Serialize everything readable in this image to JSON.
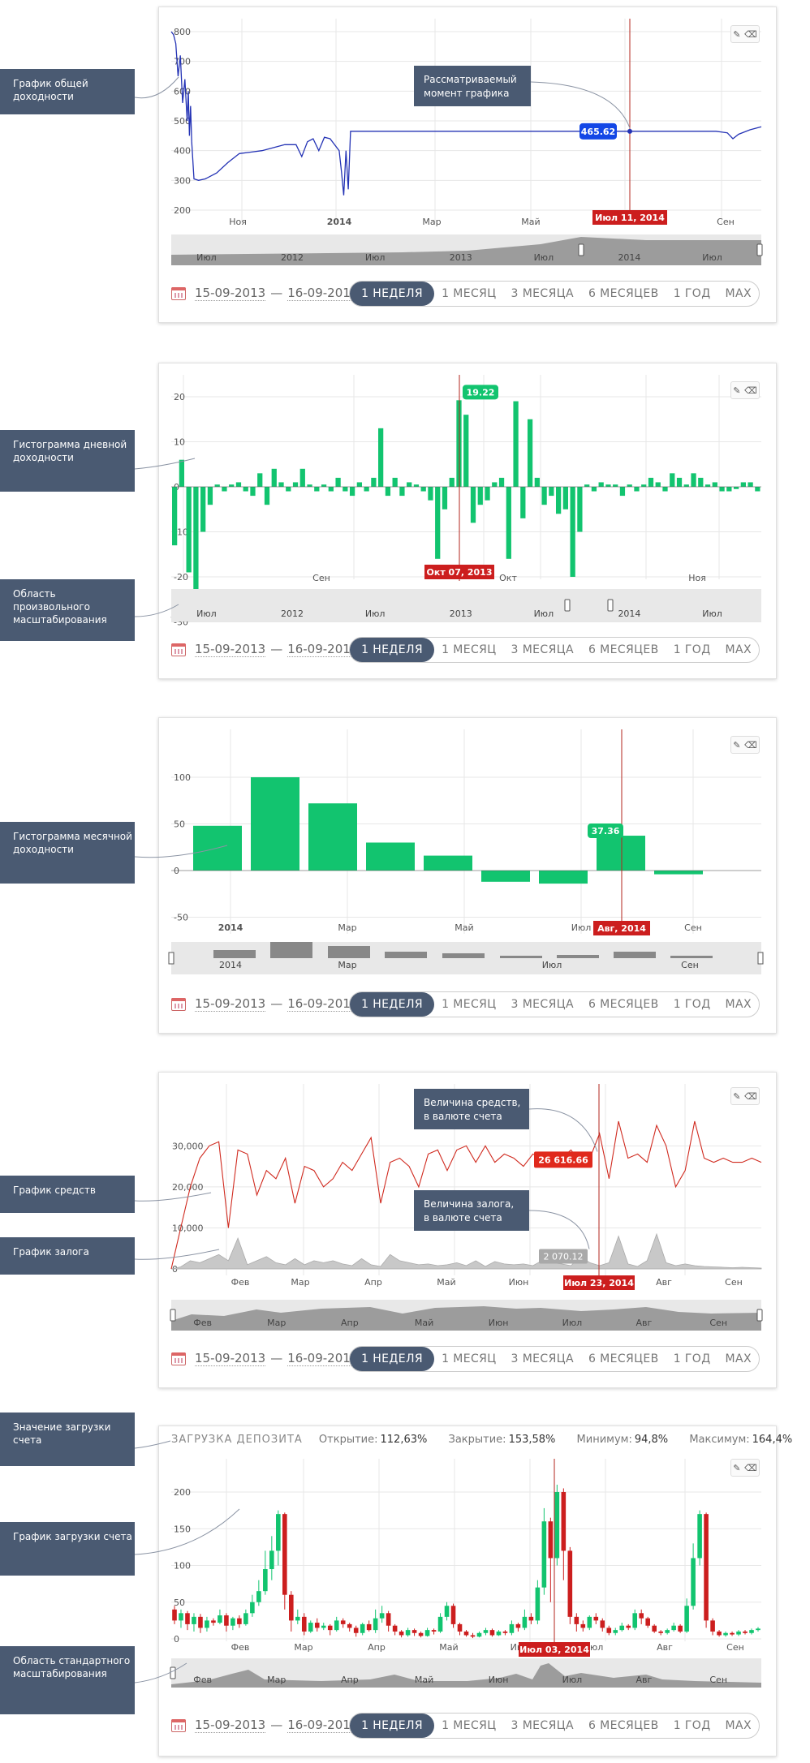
{
  "callouts": {
    "total_return_graph": "График общей доходности",
    "daily_histogram": "Гистограмма дневной доходности",
    "custom_zoom": "Область произвольного масштабирования",
    "monthly_histogram": "Гистограмма месячной доходности",
    "funds_graph": "График средств",
    "collateral_graph": "График залога",
    "deposit_load_value": "Значение загрузки счета",
    "deposit_load_graph": "График загрузки счета",
    "standard_zoom": "Область стандартного масштабирования"
  },
  "annotations": {
    "considered_moment": "Рассматриваемый момент графика",
    "funds_value": "Величина средств, в валюте счета",
    "collateral_value": "Величина залога, в валюте счета"
  },
  "footer": {
    "date_from": "15-09-2013",
    "dash": "—",
    "date_to": "16-09-2014",
    "periods": [
      "1 НЕДЕЛЯ",
      "1 МЕСЯЦ",
      "3 МЕСЯЦА",
      "6 МЕСЯЦЕВ",
      "1 ГОД",
      "MAX"
    ]
  },
  "tools": {
    "pencil": "✎",
    "eraser": "⌫"
  },
  "navigator": {
    "long_labels": [
      "Июл",
      "2012",
      "Июл",
      "2013",
      "Июл",
      "2014",
      "Июл"
    ],
    "monthly_labels": [
      "2014",
      "Мар",
      "Июл",
      "Сен"
    ],
    "funds_labels": [
      "Фев",
      "Мар",
      "Апр",
      "Май",
      "Июн",
      "Июл",
      "Авг",
      "Сен"
    ]
  },
  "deposit_header": {
    "title": "ЗАГРУЗКА ДЕПОЗИТА",
    "open_label": "Открытие:",
    "open_value": "112,63%",
    "close_label": "Закрытие:",
    "close_value": "153,58%",
    "min_label": "Минимум:",
    "min_value": "94,8%",
    "max_label": "Максимум:",
    "max_value": "164,4%"
  },
  "chart_data": [
    {
      "type": "line",
      "y_ticks": [
        800,
        700,
        600,
        500,
        400,
        300,
        200
      ],
      "ylim": [
        200,
        800
      ],
      "x_ticks": [
        "Ноя",
        "2014",
        "Мар",
        "Май",
        "Сен"
      ],
      "crosshair_label": "Июл 11, 2014",
      "crosshair_value": "465.62",
      "series": [
        {
          "x": [
            0,
            2,
            4,
            6,
            8,
            10,
            12,
            14,
            15,
            16,
            17,
            18,
            20,
            24,
            30,
            40,
            50,
            60,
            70,
            80,
            90,
            100,
            110,
            115,
            120,
            125,
            130,
            135,
            140,
            148,
            150,
            152,
            154,
            156,
            158,
            160,
            162,
            165,
            200,
            300,
            400,
            480,
            490,
            495,
            500,
            510,
            520
          ],
          "y": [
            800,
            790,
            760,
            650,
            720,
            560,
            640,
            500,
            600,
            450,
            550,
            430,
            305,
            300,
            305,
            325,
            360,
            390,
            395,
            400,
            410,
            420,
            420,
            380,
            430,
            440,
            400,
            445,
            440,
            400,
            330,
            250,
            400,
            270,
            465,
            465,
            465,
            465,
            465,
            465,
            465,
            465,
            460,
            440,
            455,
            470,
            480
          ]
        }
      ]
    },
    {
      "type": "bar",
      "y_ticks": [
        20,
        10,
        0,
        -10,
        -20,
        -30
      ],
      "ylim": [
        -30,
        25
      ],
      "x_ticks": [
        "Сен",
        "Окт",
        "Ноя"
      ],
      "crosshair_label": "Окт 07, 2013",
      "crosshair_value": "19.22",
      "values": [
        -13,
        6,
        -19,
        -23,
        -10,
        -4,
        0.5,
        -1,
        0.5,
        1,
        -1,
        -2,
        3,
        -4,
        4,
        1,
        -1,
        1,
        4,
        0.5,
        -1,
        0.5,
        -1,
        2,
        -1,
        -2,
        1,
        -1,
        2,
        13,
        -2,
        2,
        -2,
        1,
        0.5,
        -1,
        -3,
        -16,
        -5,
        2,
        19.22,
        16,
        -8,
        -4,
        -3,
        1,
        2,
        -16,
        19,
        -7,
        15,
        2,
        -4,
        -2,
        -6,
        -5,
        -20,
        -10,
        0.5,
        -1,
        1,
        0.5,
        0.5,
        -2,
        0.5,
        -1,
        0.5,
        2,
        1,
        -1,
        3,
        2,
        0.5,
        3,
        2,
        0.5,
        1,
        -1,
        -1,
        -0.5,
        1,
        1,
        -1
      ]
    },
    {
      "type": "bar",
      "y_ticks": [
        100,
        50,
        0,
        -50
      ],
      "ylim": [
        -50,
        100
      ],
      "x_ticks": [
        "2014",
        "Мар",
        "Май",
        "Июл",
        "Сен"
      ],
      "crosshair_label": "Авг, 2014",
      "crosshair_value": "37.36",
      "values": [
        48,
        100,
        72,
        30,
        16,
        -12,
        -14,
        37.36,
        -4
      ]
    },
    {
      "type": "area",
      "y_ticks": [
        "30,000",
        "20,000",
        "10,000",
        "0"
      ],
      "ylim": [
        0,
        32000
      ],
      "x_ticks": [
        "Фев",
        "Мар",
        "Апр",
        "Май",
        "Июн",
        "Июл",
        "Авг",
        "Сен"
      ],
      "crosshair_label": "Июл 23, 2014",
      "funds_label": "26 616.66",
      "collateral_label": "2 070.12",
      "series": [
        {
          "name": "funds",
          "values": [
            0,
            10000,
            20000,
            27000,
            30000,
            31000,
            10000,
            29000,
            28000,
            18000,
            24000,
            22000,
            27000,
            16000,
            25000,
            24000,
            20000,
            22000,
            26000,
            24000,
            28000,
            32000,
            16000,
            26000,
            27000,
            25000,
            20000,
            28000,
            29000,
            24000,
            29000,
            30000,
            26000,
            30000,
            26000,
            28000,
            27000,
            25000,
            28000,
            27000,
            26000,
            27000,
            29000,
            26000,
            27000,
            33000,
            22000,
            36000,
            27000,
            28000,
            26000,
            35000,
            30000,
            20000,
            24000,
            36000,
            27000,
            26000,
            27000,
            26000,
            26000,
            27000,
            26000
          ]
        },
        {
          "name": "collateral",
          "values": [
            0,
            500,
            2000,
            1500,
            2500,
            3500,
            2000,
            7500,
            1000,
            2000,
            3000,
            1500,
            1000,
            2500,
            1000,
            2000,
            1500,
            2000,
            1200,
            800,
            2500,
            1000,
            600,
            3500,
            2000,
            1500,
            1000,
            1200,
            800,
            1000,
            1500,
            800,
            2000,
            600,
            1800,
            1200,
            1000,
            1200,
            800,
            2070,
            1500,
            1200,
            800,
            3000,
            1500,
            800,
            1500,
            8000,
            1200,
            600,
            2000,
            8500,
            1500,
            800,
            1200,
            800,
            600,
            500,
            400,
            300,
            400,
            300,
            200
          ]
        }
      ]
    },
    {
      "type": "candlestick",
      "y_ticks": [
        200,
        150,
        100,
        50,
        0
      ],
      "ylim": [
        0,
        225
      ],
      "x_ticks": [
        "Фев",
        "Мар",
        "Апр",
        "Май",
        "Июн",
        "Июл",
        "Авг",
        "Сен"
      ],
      "crosshair_label": "Июл 03, 2014",
      "series": [
        {
          "name": "ohlc",
          "values": [
            [
              40,
              25,
              45,
              20
            ],
            [
              25,
              35,
              40,
              15
            ],
            [
              35,
              20,
              38,
              12
            ],
            [
              20,
              30,
              35,
              10
            ],
            [
              30,
              15,
              34,
              8
            ],
            [
              15,
              25,
              30,
              10
            ],
            [
              25,
              22,
              28,
              18
            ],
            [
              22,
              32,
              40,
              20
            ],
            [
              32,
              18,
              35,
              10
            ],
            [
              18,
              28,
              30,
              12
            ],
            [
              28,
              20,
              32,
              15
            ],
            [
              20,
              35,
              40,
              18
            ],
            [
              35,
              50,
              60,
              30
            ],
            [
              50,
              65,
              80,
              45
            ],
            [
              65,
              95,
              120,
              60
            ],
            [
              95,
              120,
              140,
              80
            ],
            [
              120,
              170,
              175,
              100
            ],
            [
              170,
              60,
              172,
              40
            ],
            [
              60,
              25,
              65,
              10
            ],
            [
              25,
              30,
              40,
              20
            ],
            [
              30,
              10,
              35,
              5
            ],
            [
              10,
              22,
              25,
              8
            ],
            [
              22,
              15,
              28,
              10
            ],
            [
              15,
              18,
              22,
              12
            ],
            [
              18,
              12,
              20,
              5
            ],
            [
              12,
              25,
              30,
              10
            ],
            [
              25,
              20,
              28,
              15
            ],
            [
              20,
              15,
              22,
              10
            ],
            [
              15,
              8,
              18,
              3
            ],
            [
              8,
              20,
              22,
              5
            ],
            [
              20,
              12,
              25,
              10
            ],
            [
              12,
              28,
              40,
              8
            ],
            [
              28,
              35,
              45,
              22
            ],
            [
              35,
              18,
              38,
              10
            ],
            [
              18,
              10,
              20,
              5
            ],
            [
              10,
              5,
              12,
              2
            ],
            [
              5,
              12,
              15,
              3
            ],
            [
              12,
              8,
              14,
              4
            ],
            [
              8,
              4,
              10,
              2
            ],
            [
              4,
              12,
              15,
              3
            ],
            [
              12,
              10,
              14,
              6
            ],
            [
              10,
              30,
              35,
              8
            ],
            [
              30,
              45,
              50,
              25
            ],
            [
              45,
              20,
              48,
              15
            ],
            [
              20,
              10,
              22,
              5
            ],
            [
              10,
              5,
              12,
              3
            ],
            [
              5,
              3,
              8,
              1
            ],
            [
              3,
              8,
              10,
              2
            ],
            [
              8,
              12,
              15,
              5
            ],
            [
              12,
              5,
              14,
              3
            ],
            [
              5,
              10,
              12,
              4
            ],
            [
              10,
              8,
              12,
              5
            ],
            [
              8,
              20,
              25,
              5
            ],
            [
              20,
              15,
              22,
              10
            ],
            [
              15,
              30,
              40,
              12
            ],
            [
              30,
              25,
              35,
              20
            ],
            [
              25,
              70,
              80,
              20
            ],
            [
              70,
              160,
              178,
              60
            ],
            [
              160,
              110,
              165,
              50
            ],
            [
              110,
              200,
              210,
              100
            ],
            [
              200,
              120,
              205,
              80
            ],
            [
              120,
              30,
              125,
              20
            ],
            [
              30,
              20,
              35,
              10
            ],
            [
              20,
              15,
              25,
              10
            ],
            [
              15,
              30,
              32,
              12
            ],
            [
              30,
              25,
              35,
              20
            ],
            [
              25,
              15,
              28,
              10
            ],
            [
              15,
              8,
              18,
              5
            ],
            [
              8,
              12,
              15,
              5
            ],
            [
              12,
              18,
              22,
              10
            ],
            [
              18,
              15,
              20,
              12
            ],
            [
              15,
              35,
              40,
              12
            ],
            [
              35,
              28,
              40,
              20
            ],
            [
              28,
              18,
              30,
              15
            ],
            [
              18,
              10,
              20,
              8
            ],
            [
              10,
              8,
              12,
              5
            ],
            [
              8,
              12,
              14,
              6
            ],
            [
              12,
              18,
              22,
              10
            ],
            [
              18,
              10,
              20,
              8
            ],
            [
              10,
              45,
              55,
              8
            ],
            [
              45,
              110,
              130,
              40
            ],
            [
              110,
              170,
              175,
              100
            ],
            [
              170,
              25,
              172,
              15
            ],
            [
              25,
              10,
              28,
              5
            ],
            [
              10,
              5,
              12,
              3
            ],
            [
              5,
              8,
              10,
              3
            ],
            [
              8,
              6,
              10,
              4
            ],
            [
              6,
              10,
              12,
              4
            ],
            [
              10,
              8,
              12,
              6
            ],
            [
              8,
              12,
              14,
              6
            ],
            [
              12,
              14,
              16,
              10
            ]
          ]
        }
      ]
    }
  ]
}
